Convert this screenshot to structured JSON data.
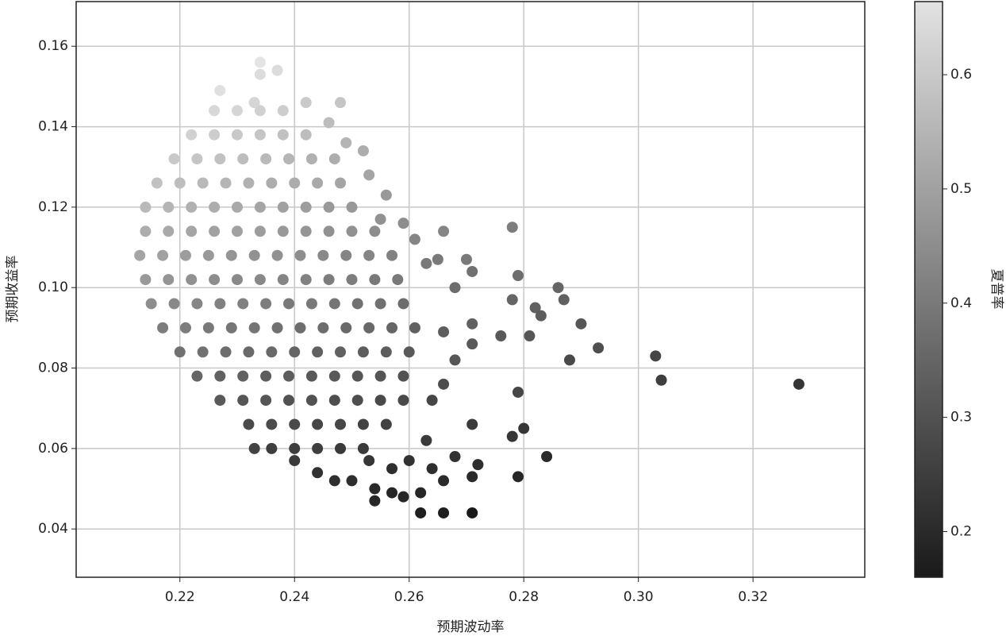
{
  "chart_data": {
    "type": "scatter",
    "xlabel": "预期波动率",
    "ylabel": "预期收益率",
    "colorbar_label": "夏普率",
    "xlim": [
      0.2019,
      0.3395
    ],
    "ylim": [
      0.028,
      0.1711
    ],
    "xticks": [
      0.22,
      0.24,
      0.26,
      0.28,
      {
        "value": 0.3,
        "label": "0.30"
      },
      0.32
    ],
    "yticks": [
      0.04,
      0.06,
      0.08,
      {
        "value": 0.1,
        "label": "0.10"
      },
      0.12,
      0.14,
      0.16
    ],
    "clim": [
      0.16,
      0.664
    ],
    "cticks": [
      0.2,
      0.3,
      0.4,
      0.5,
      0.6
    ],
    "colormap": [
      "#1a1a1a",
      "#e2e2e2"
    ],
    "grid": true,
    "points": [
      [
        0.226,
        0.144,
        0.64
      ],
      [
        0.23,
        0.144,
        0.63
      ],
      [
        0.234,
        0.144,
        0.62
      ],
      [
        0.238,
        0.144,
        0.61
      ],
      [
        0.222,
        0.138,
        0.62
      ],
      [
        0.226,
        0.138,
        0.61
      ],
      [
        0.23,
        0.138,
        0.6
      ],
      [
        0.234,
        0.138,
        0.59
      ],
      [
        0.238,
        0.138,
        0.58
      ],
      [
        0.242,
        0.138,
        0.57
      ],
      [
        0.219,
        0.132,
        0.6
      ],
      [
        0.223,
        0.132,
        0.59
      ],
      [
        0.227,
        0.132,
        0.58
      ],
      [
        0.231,
        0.132,
        0.57
      ],
      [
        0.235,
        0.132,
        0.56
      ],
      [
        0.239,
        0.132,
        0.55
      ],
      [
        0.243,
        0.132,
        0.54
      ],
      [
        0.247,
        0.132,
        0.53
      ],
      [
        0.216,
        0.126,
        0.58
      ],
      [
        0.22,
        0.126,
        0.57
      ],
      [
        0.224,
        0.126,
        0.56
      ],
      [
        0.228,
        0.126,
        0.55
      ],
      [
        0.232,
        0.126,
        0.54
      ],
      [
        0.236,
        0.126,
        0.53
      ],
      [
        0.24,
        0.126,
        0.53
      ],
      [
        0.244,
        0.126,
        0.52
      ],
      [
        0.248,
        0.126,
        0.51
      ],
      [
        0.214,
        0.12,
        0.56
      ],
      [
        0.218,
        0.12,
        0.55
      ],
      [
        0.222,
        0.12,
        0.54
      ],
      [
        0.226,
        0.12,
        0.53
      ],
      [
        0.23,
        0.12,
        0.52
      ],
      [
        0.234,
        0.12,
        0.51
      ],
      [
        0.238,
        0.12,
        0.5
      ],
      [
        0.242,
        0.12,
        0.49
      ],
      [
        0.246,
        0.12,
        0.48
      ],
      [
        0.25,
        0.12,
        0.48
      ],
      [
        0.214,
        0.114,
        0.53
      ],
      [
        0.218,
        0.114,
        0.52
      ],
      [
        0.222,
        0.114,
        0.51
      ],
      [
        0.226,
        0.114,
        0.5
      ],
      [
        0.23,
        0.114,
        0.5
      ],
      [
        0.234,
        0.114,
        0.49
      ],
      [
        0.238,
        0.114,
        0.48
      ],
      [
        0.242,
        0.114,
        0.47
      ],
      [
        0.246,
        0.114,
        0.46
      ],
      [
        0.25,
        0.114,
        0.46
      ],
      [
        0.254,
        0.114,
        0.45
      ],
      [
        0.213,
        0.108,
        0.51
      ],
      [
        0.217,
        0.108,
        0.5
      ],
      [
        0.221,
        0.108,
        0.49
      ],
      [
        0.225,
        0.108,
        0.48
      ],
      [
        0.229,
        0.108,
        0.47
      ],
      [
        0.233,
        0.108,
        0.46
      ],
      [
        0.237,
        0.108,
        0.46
      ],
      [
        0.241,
        0.108,
        0.45
      ],
      [
        0.245,
        0.108,
        0.44
      ],
      [
        0.249,
        0.108,
        0.43
      ],
      [
        0.253,
        0.108,
        0.43
      ],
      [
        0.257,
        0.108,
        0.42
      ],
      [
        0.214,
        0.102,
        0.48
      ],
      [
        0.218,
        0.102,
        0.47
      ],
      [
        0.222,
        0.102,
        0.46
      ],
      [
        0.226,
        0.102,
        0.45
      ],
      [
        0.23,
        0.102,
        0.44
      ],
      [
        0.234,
        0.102,
        0.44
      ],
      [
        0.238,
        0.102,
        0.43
      ],
      [
        0.242,
        0.102,
        0.42
      ],
      [
        0.246,
        0.102,
        0.41
      ],
      [
        0.25,
        0.102,
        0.41
      ],
      [
        0.254,
        0.102,
        0.4
      ],
      [
        0.258,
        0.102,
        0.4
      ],
      [
        0.215,
        0.096,
        0.45
      ],
      [
        0.219,
        0.096,
        0.44
      ],
      [
        0.223,
        0.096,
        0.43
      ],
      [
        0.227,
        0.096,
        0.42
      ],
      [
        0.231,
        0.096,
        0.42
      ],
      [
        0.235,
        0.096,
        0.41
      ],
      [
        0.239,
        0.096,
        0.4
      ],
      [
        0.243,
        0.096,
        0.4
      ],
      [
        0.247,
        0.096,
        0.39
      ],
      [
        0.251,
        0.096,
        0.38
      ],
      [
        0.255,
        0.096,
        0.38
      ],
      [
        0.259,
        0.096,
        0.37
      ],
      [
        0.217,
        0.09,
        0.41
      ],
      [
        0.221,
        0.09,
        0.41
      ],
      [
        0.225,
        0.09,
        0.4
      ],
      [
        0.229,
        0.09,
        0.39
      ],
      [
        0.233,
        0.09,
        0.39
      ],
      [
        0.237,
        0.09,
        0.38
      ],
      [
        0.241,
        0.09,
        0.37
      ],
      [
        0.245,
        0.09,
        0.37
      ],
      [
        0.249,
        0.09,
        0.36
      ],
      [
        0.253,
        0.09,
        0.36
      ],
      [
        0.257,
        0.09,
        0.35
      ],
      [
        0.261,
        0.09,
        0.34
      ],
      [
        0.22,
        0.084,
        0.38
      ],
      [
        0.224,
        0.084,
        0.38
      ],
      [
        0.228,
        0.084,
        0.37
      ],
      [
        0.232,
        0.084,
        0.36
      ],
      [
        0.236,
        0.084,
        0.36
      ],
      [
        0.24,
        0.084,
        0.35
      ],
      [
        0.244,
        0.084,
        0.34
      ],
      [
        0.248,
        0.084,
        0.34
      ],
      [
        0.252,
        0.084,
        0.33
      ],
      [
        0.256,
        0.084,
        0.33
      ],
      [
        0.26,
        0.084,
        0.32
      ],
      [
        0.223,
        0.078,
        0.35
      ],
      [
        0.227,
        0.078,
        0.34
      ],
      [
        0.231,
        0.078,
        0.34
      ],
      [
        0.235,
        0.078,
        0.33
      ],
      [
        0.239,
        0.078,
        0.33
      ],
      [
        0.243,
        0.078,
        0.32
      ],
      [
        0.247,
        0.078,
        0.32
      ],
      [
        0.251,
        0.078,
        0.31
      ],
      [
        0.255,
        0.078,
        0.31
      ],
      [
        0.259,
        0.078,
        0.3
      ],
      [
        0.227,
        0.072,
        0.32
      ],
      [
        0.231,
        0.072,
        0.31
      ],
      [
        0.235,
        0.072,
        0.31
      ],
      [
        0.239,
        0.072,
        0.3
      ],
      [
        0.243,
        0.072,
        0.3
      ],
      [
        0.247,
        0.072,
        0.29
      ],
      [
        0.251,
        0.072,
        0.29
      ],
      [
        0.255,
        0.072,
        0.28
      ],
      [
        0.259,
        0.072,
        0.28
      ],
      [
        0.232,
        0.066,
        0.28
      ],
      [
        0.236,
        0.066,
        0.28
      ],
      [
        0.24,
        0.066,
        0.28
      ],
      [
        0.244,
        0.066,
        0.27
      ],
      [
        0.248,
        0.066,
        0.27
      ],
      [
        0.252,
        0.066,
        0.26
      ],
      [
        0.256,
        0.066,
        0.26
      ],
      [
        0.236,
        0.06,
        0.25
      ],
      [
        0.24,
        0.06,
        0.25
      ],
      [
        0.244,
        0.06,
        0.25
      ],
      [
        0.248,
        0.06,
        0.24
      ],
      [
        0.252,
        0.06,
        0.24
      ],
      [
        0.234,
        0.156,
        0.67
      ],
      [
        0.234,
        0.153,
        0.65
      ],
      [
        0.237,
        0.154,
        0.65
      ],
      [
        0.227,
        0.149,
        0.66
      ],
      [
        0.233,
        0.146,
        0.63
      ],
      [
        0.242,
        0.146,
        0.6
      ],
      [
        0.248,
        0.146,
        0.59
      ],
      [
        0.246,
        0.141,
        0.57
      ],
      [
        0.249,
        0.136,
        0.55
      ],
      [
        0.252,
        0.134,
        0.53
      ],
      [
        0.253,
        0.128,
        0.51
      ],
      [
        0.256,
        0.123,
        0.48
      ],
      [
        0.255,
        0.117,
        0.46
      ],
      [
        0.259,
        0.116,
        0.45
      ],
      [
        0.266,
        0.114,
        0.43
      ],
      [
        0.261,
        0.112,
        0.43
      ],
      [
        0.263,
        0.106,
        0.4
      ],
      [
        0.27,
        0.107,
        0.4
      ],
      [
        0.271,
        0.104,
        0.38
      ],
      [
        0.265,
        0.107,
        0.4
      ],
      [
        0.268,
        0.1,
        0.37
      ],
      [
        0.278,
        0.115,
        0.41
      ],
      [
        0.279,
        0.103,
        0.37
      ],
      [
        0.286,
        0.1,
        0.35
      ],
      [
        0.287,
        0.097,
        0.34
      ],
      [
        0.278,
        0.097,
        0.35
      ],
      [
        0.282,
        0.095,
        0.34
      ],
      [
        0.283,
        0.093,
        0.33
      ],
      [
        0.29,
        0.091,
        0.31
      ],
      [
        0.276,
        0.088,
        0.32
      ],
      [
        0.281,
        0.088,
        0.31
      ],
      [
        0.293,
        0.085,
        0.29
      ],
      [
        0.288,
        0.082,
        0.28
      ],
      [
        0.303,
        0.083,
        0.27
      ],
      [
        0.304,
        0.077,
        0.25
      ],
      [
        0.328,
        0.076,
        0.23
      ],
      [
        0.279,
        0.074,
        0.27
      ],
      [
        0.271,
        0.091,
        0.34
      ],
      [
        0.271,
        0.086,
        0.32
      ],
      [
        0.266,
        0.089,
        0.33
      ],
      [
        0.268,
        0.082,
        0.31
      ],
      [
        0.266,
        0.076,
        0.29
      ],
      [
        0.264,
        0.072,
        0.27
      ],
      [
        0.271,
        0.066,
        0.24
      ],
      [
        0.278,
        0.063,
        0.23
      ],
      [
        0.28,
        0.065,
        0.23
      ],
      [
        0.284,
        0.058,
        0.2
      ],
      [
        0.279,
        0.053,
        0.19
      ],
      [
        0.272,
        0.056,
        0.21
      ],
      [
        0.268,
        0.058,
        0.22
      ],
      [
        0.263,
        0.062,
        0.24
      ],
      [
        0.26,
        0.057,
        0.22
      ],
      [
        0.264,
        0.055,
        0.21
      ],
      [
        0.266,
        0.052,
        0.2
      ],
      [
        0.271,
        0.053,
        0.2
      ],
      [
        0.262,
        0.049,
        0.19
      ],
      [
        0.259,
        0.048,
        0.19
      ],
      [
        0.254,
        0.05,
        0.2
      ],
      [
        0.254,
        0.047,
        0.19
      ],
      [
        0.257,
        0.049,
        0.19
      ],
      [
        0.262,
        0.044,
        0.17
      ],
      [
        0.266,
        0.044,
        0.17
      ],
      [
        0.271,
        0.044,
        0.16
      ],
      [
        0.24,
        0.057,
        0.24
      ],
      [
        0.244,
        0.054,
        0.22
      ],
      [
        0.247,
        0.052,
        0.21
      ],
      [
        0.25,
        0.052,
        0.21
      ],
      [
        0.233,
        0.06,
        0.26
      ],
      [
        0.253,
        0.057,
        0.23
      ],
      [
        0.257,
        0.055,
        0.21
      ]
    ]
  }
}
